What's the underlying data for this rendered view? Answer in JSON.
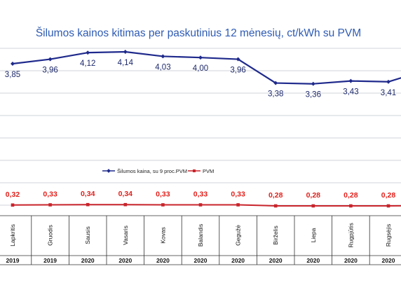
{
  "chart_data": {
    "type": "line",
    "title": "Šilumos kainos kitimas per paskutinius 12 mėnesių, ct/kWh su PVM",
    "categories": [
      "Lapkritis",
      "Gruodis",
      "Sausis",
      "Vasaris",
      "Kovas",
      "Balandis",
      "Gegužė",
      "Birželis",
      "Liepa",
      "Rugpjūtis",
      "Rugsėjis"
    ],
    "years": [
      "2019",
      "2019",
      "2020",
      "2020",
      "2020",
      "2020",
      "2020",
      "2020",
      "2020",
      "2020",
      "2020"
    ],
    "series": [
      {
        "name": "Šilumos kaina, su 9 proc.PVM",
        "color": "#1f2a8c",
        "values": [
          3.85,
          3.96,
          4.12,
          4.14,
          4.03,
          4.0,
          3.96,
          3.38,
          3.36,
          3.43,
          3.41
        ],
        "labels": [
          "3,85",
          "3,96",
          "4,12",
          "4,14",
          "4,03",
          "4,00",
          "3,96",
          "3,38",
          "3,36",
          "3,43",
          "3,41"
        ]
      },
      {
        "name": "PVM",
        "color": "#c8242b",
        "values": [
          0.32,
          0.33,
          0.34,
          0.34,
          0.33,
          0.33,
          0.33,
          0.28,
          0.28,
          0.28,
          0.28
        ],
        "labels": [
          "0,32",
          "0,33",
          "0,34",
          "0,34",
          "0,33",
          "0,33",
          "0,33",
          "0,28",
          "0,28",
          "0,28",
          "0,28"
        ]
      }
    ],
    "grid": true,
    "legend_position": "center"
  }
}
